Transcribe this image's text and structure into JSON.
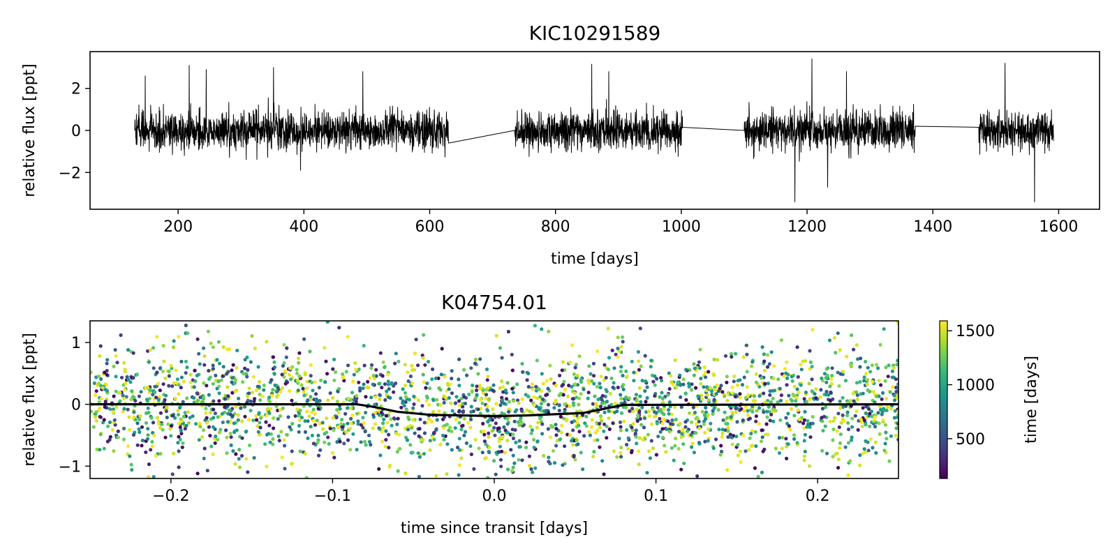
{
  "chart_data": [
    {
      "id": "lightcurve",
      "type": "line",
      "title": "KIC10291589",
      "xlabel": "time [days]",
      "ylabel": "relative flux [ppt]",
      "xlim": [
        60,
        1665
      ],
      "ylim": [
        -3.75,
        3.75
      ],
      "xticks": [
        200,
        400,
        600,
        800,
        1000,
        1200,
        1400,
        1600
      ],
      "yticks": [
        -2,
        0,
        2
      ],
      "line_color": "#000000",
      "segments": [
        {
          "start": 131,
          "end": 630,
          "level_start": 0.0,
          "level_end": -0.6
        },
        {
          "start": 735,
          "end": 1002,
          "level_start": 0.0,
          "level_end": 0.15
        },
        {
          "start": 1100,
          "end": 1372,
          "level_start": 0.0,
          "level_end": 0.2
        },
        {
          "start": 1473,
          "end": 1592,
          "level_start": 0.15,
          "level_end": -0.5
        }
      ],
      "noise_sigma_ppt": 0.45,
      "spikes": [
        {
          "x": 148,
          "y": 2.6
        },
        {
          "x": 218,
          "y": 3.1
        },
        {
          "x": 245,
          "y": 2.9
        },
        {
          "x": 352,
          "y": 3.0
        },
        {
          "x": 395,
          "y": -1.9
        },
        {
          "x": 494,
          "y": 2.8
        },
        {
          "x": 858,
          "y": 3.15
        },
        {
          "x": 885,
          "y": 2.8
        },
        {
          "x": 1181,
          "y": -3.4
        },
        {
          "x": 1208,
          "y": 3.4
        },
        {
          "x": 1233,
          "y": -2.7
        },
        {
          "x": 1263,
          "y": 2.8
        },
        {
          "x": 1515,
          "y": 3.2
        },
        {
          "x": 1562,
          "y": -3.4
        }
      ]
    },
    {
      "id": "folded",
      "type": "scatter",
      "title": "K04754.01",
      "xlabel": "time since transit [days]",
      "ylabel": "relative flux [ppt]",
      "xlim": [
        -0.25,
        0.25
      ],
      "ylim": [
        -1.2,
        1.35
      ],
      "xticks": [
        -0.2,
        -0.1,
        0.0,
        0.1,
        0.2
      ],
      "xtick_labels": [
        "−0.2",
        "−0.1",
        "0.0",
        "0.1",
        "0.2"
      ],
      "yticks": [
        -1,
        0,
        1
      ],
      "ytick_labels": [
        "−1",
        "0",
        "1"
      ],
      "n_points": 2600,
      "noise_sigma_ppt": 0.45,
      "model": {
        "x": [
          -0.25,
          -0.085,
          -0.075,
          -0.06,
          -0.04,
          0.0,
          0.02,
          0.055,
          0.065,
          0.08,
          0.25
        ],
        "y": [
          0.0,
          0.0,
          -0.04,
          -0.12,
          -0.17,
          -0.19,
          -0.18,
          -0.14,
          -0.09,
          -0.01,
          0.0
        ],
        "color": "#000000"
      },
      "colorbar": {
        "label": "time [days]",
        "range": [
          131,
          1592
        ],
        "ticks": [
          500,
          1000,
          1500
        ],
        "colormap": "viridis",
        "stops": [
          "#440154",
          "#482878",
          "#3e4989",
          "#31688e",
          "#26828e",
          "#1f9e89",
          "#35b779",
          "#6ece58",
          "#b5de2b",
          "#fde725"
        ]
      }
    }
  ]
}
